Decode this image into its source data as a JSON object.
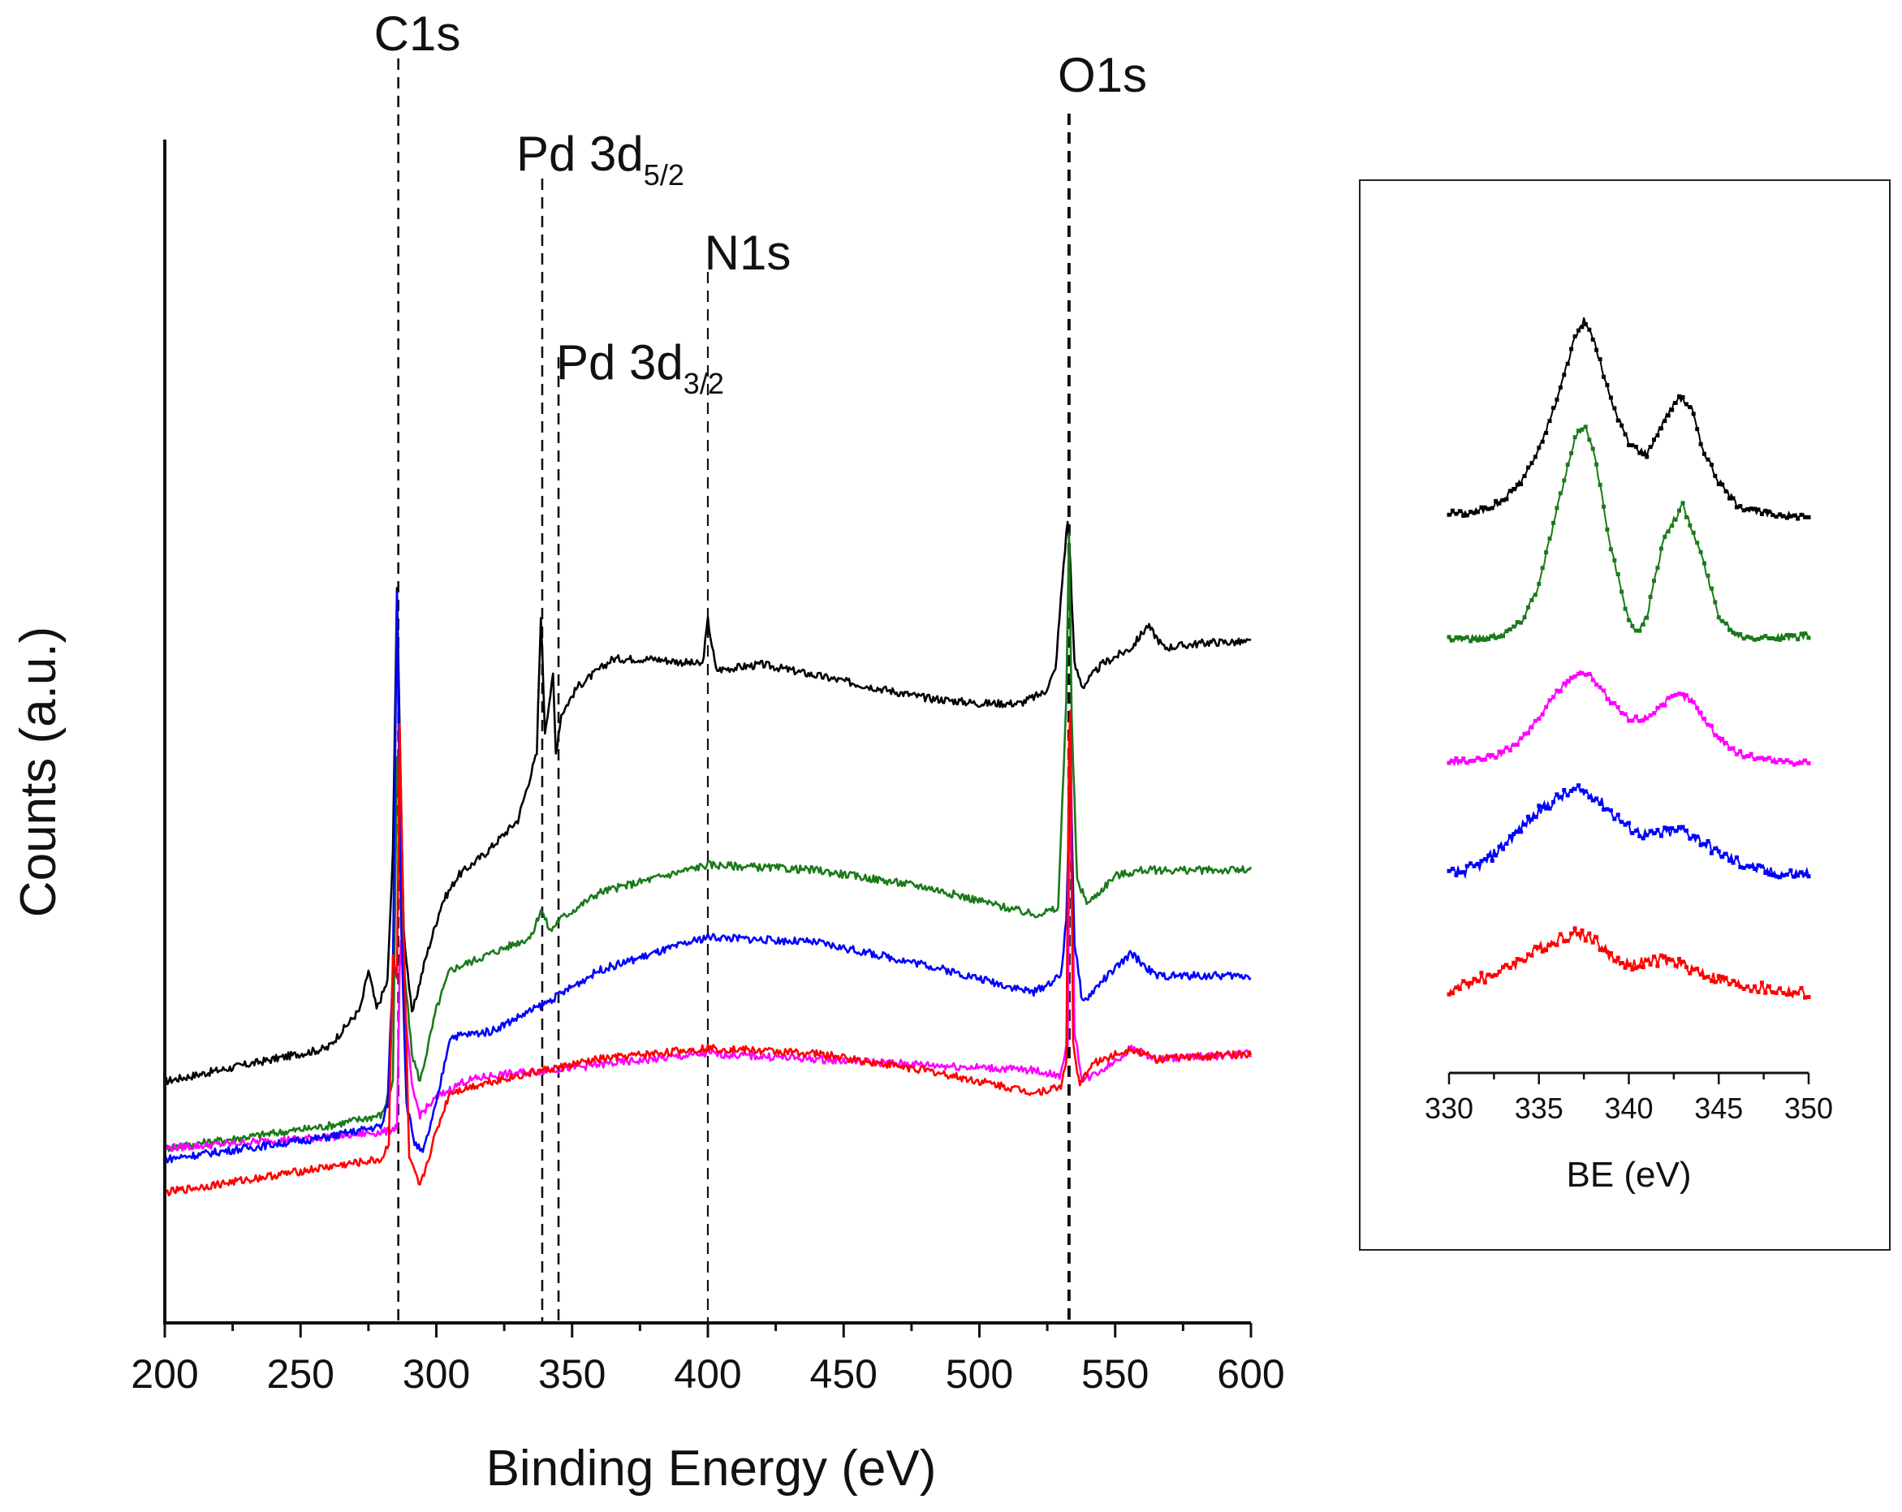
{
  "chart_data": [
    {
      "type": "line",
      "title": "",
      "xlabel": "Binding Energy (eV)",
      "ylabel": "Counts (a.u.)",
      "xlim": [
        200,
        600
      ],
      "xticks": [
        "200",
        "250",
        "300",
        "350",
        "400",
        "450",
        "500",
        "550",
        "600"
      ],
      "y_ticks_shown": false,
      "annotations": [
        {
          "label": "C1s",
          "x": 286
        },
        {
          "label": "Pd 3d",
          "sub": "5/2",
          "x": 339
        },
        {
          "label": "Pd 3d",
          "sub": "3/2",
          "x": 345
        },
        {
          "label": "N1s",
          "x": 400
        },
        {
          "label": "O1s",
          "x": 533
        }
      ],
      "series": [
        {
          "name": "black",
          "color": "#000000",
          "x": [
            200,
            260,
            272,
            275,
            278,
            282,
            284,
            285.5,
            286.5,
            288,
            291,
            296,
            302,
            308,
            318,
            330,
            337,
            338.5,
            340,
            343,
            344,
            346,
            352,
            365,
            380,
            398,
            400,
            403,
            420,
            450,
            480,
            500,
            515,
            524,
            528,
            531,
            532.5,
            533.5,
            535,
            538,
            545,
            556,
            562,
            568,
            585,
            600
          ],
          "y": [
            1.15,
            1.45,
            1.8,
            2.15,
            1.8,
            2.05,
            3.2,
            5.6,
            4.3,
            2.5,
            1.75,
            2.25,
            2.75,
            3.0,
            3.2,
            3.5,
            4.1,
            5.35,
            4.3,
            4.8,
            4.1,
            4.45,
            4.7,
            4.95,
            4.95,
            4.9,
            5.3,
            4.85,
            4.9,
            4.75,
            4.6,
            4.55,
            4.55,
            4.65,
            4.85,
            5.8,
            6.2,
            5.8,
            4.9,
            4.7,
            4.9,
            5.05,
            5.25,
            5.05,
            5.1,
            5.1
          ]
        },
        {
          "name": "green",
          "color": "#1a7a1a",
          "x": [
            200,
            260,
            280,
            284,
            285.5,
            286.5,
            288,
            291,
            294,
            300,
            305,
            320,
            335,
            338.5,
            342,
            345,
            360,
            400,
            440,
            480,
            520,
            529,
            532,
            533,
            534,
            536,
            540,
            550,
            560,
            600
          ],
          "y": [
            0.55,
            0.75,
            0.85,
            1.15,
            4.05,
            3.6,
            2.2,
            1.4,
            1.15,
            1.8,
            2.15,
            2.3,
            2.45,
            2.7,
            2.5,
            2.6,
            2.85,
            3.1,
            3.05,
            2.9,
            2.65,
            2.7,
            4.6,
            6.05,
            4.4,
            2.95,
            2.75,
            3.0,
            3.05,
            3.05
          ]
        },
        {
          "name": "magenta",
          "color": "#ff00ff",
          "x": [
            200,
            260,
            282,
            285.5,
            286.8,
            288,
            291,
            294,
            300,
            310,
            320,
            340,
            360,
            400,
            440,
            480,
            520,
            530,
            532.5,
            533.5,
            535,
            538,
            548,
            556,
            565,
            600
          ],
          "y": [
            0.55,
            0.65,
            0.7,
            0.75,
            2.55,
            1.9,
            1.1,
            0.85,
            1.0,
            1.15,
            1.2,
            1.25,
            1.3,
            1.4,
            1.35,
            1.3,
            1.25,
            1.2,
            1.5,
            4.45,
            1.6,
            1.15,
            1.3,
            1.45,
            1.35,
            1.4
          ]
        },
        {
          "name": "blue",
          "color": "#0000ff",
          "x": [
            200,
            260,
            280,
            282,
            284,
            285.5,
            287,
            289,
            292,
            295,
            300,
            305,
            320,
            340,
            360,
            400,
            440,
            480,
            520,
            530,
            532,
            533.5,
            535,
            538,
            545,
            556,
            565,
            600
          ],
          "y": [
            0.45,
            0.65,
            0.75,
            0.95,
            2.15,
            5.55,
            2.6,
            0.95,
            0.6,
            0.5,
            0.95,
            1.55,
            1.6,
            1.85,
            2.15,
            2.45,
            2.4,
            2.2,
            1.95,
            2.1,
            2.6,
            4.0,
            2.4,
            1.85,
            2.05,
            2.3,
            2.1,
            2.1
          ]
        },
        {
          "name": "red",
          "color": "#ff0000",
          "x": [
            200,
            260,
            280,
            282.5,
            284,
            285.5,
            286.5,
            288,
            290,
            294,
            300,
            305,
            320,
            340,
            360,
            400,
            440,
            480,
            520,
            530,
            532,
            533.3,
            534.5,
            537,
            541,
            556,
            565,
            600
          ],
          "y": [
            0.15,
            0.38,
            0.45,
            0.6,
            2.3,
            2.05,
            4.35,
            2.45,
            0.45,
            0.2,
            0.7,
            1.05,
            1.15,
            1.25,
            1.35,
            1.45,
            1.4,
            1.25,
            1.05,
            1.1,
            1.35,
            5.05,
            1.5,
            1.1,
            1.3,
            1.45,
            1.35,
            1.4
          ]
        }
      ]
    },
    {
      "type": "line",
      "title": "",
      "xlabel": "BE (eV)",
      "ylabel": "",
      "xlim": [
        330,
        350
      ],
      "xticks": [
        "330",
        "335",
        "340",
        "345",
        "350"
      ],
      "y_ticks_shown": false,
      "series": [
        {
          "name": "black",
          "color": "#000000",
          "marker": "diamond",
          "x": [
            330,
            331,
            332,
            333,
            334,
            335,
            336,
            337,
            337.5,
            338,
            339,
            340,
            341,
            342,
            342.8,
            343.5,
            344,
            345,
            346,
            347,
            348,
            349,
            350
          ],
          "y": [
            0.05,
            0.05,
            0.08,
            0.15,
            0.3,
            0.55,
            0.95,
            1.45,
            1.58,
            1.45,
            0.95,
            0.6,
            0.52,
            0.8,
            0.98,
            0.88,
            0.6,
            0.3,
            0.12,
            0.06,
            0.04,
            0.03,
            0.03
          ]
        },
        {
          "name": "green",
          "color": "#1a7a1a",
          "marker": "triangle-down",
          "x": [
            330,
            331,
            332,
            333,
            334,
            335,
            336,
            337,
            337.5,
            338,
            339,
            340,
            340.5,
            341,
            342,
            343,
            344,
            345,
            346,
            347,
            348,
            349,
            350
          ],
          "y": [
            0.02,
            0.02,
            0.03,
            0.06,
            0.15,
            0.45,
            1.05,
            1.6,
            1.72,
            1.55,
            0.75,
            0.15,
            0.08,
            0.2,
            0.85,
            1.08,
            0.7,
            0.2,
            0.05,
            0.03,
            0.03,
            0.03,
            0.04
          ]
        },
        {
          "name": "magenta",
          "color": "#ff00ff",
          "marker": "triangle-up",
          "x": [
            330,
            331,
            332,
            333,
            334,
            335,
            336,
            337,
            337.5,
            338,
            339,
            340,
            341,
            342,
            342.8,
            343.5,
            344,
            345,
            346,
            347,
            348,
            349,
            350
          ],
          "y": [
            0.03,
            0.03,
            0.05,
            0.1,
            0.2,
            0.38,
            0.58,
            0.72,
            0.74,
            0.7,
            0.5,
            0.36,
            0.38,
            0.5,
            0.56,
            0.52,
            0.4,
            0.22,
            0.1,
            0.06,
            0.04,
            0.03,
            0.03
          ]
        },
        {
          "name": "blue",
          "color": "#0000ff",
          "marker": "square",
          "x": [
            330,
            331,
            332,
            333,
            334,
            335,
            336,
            337,
            338,
            339,
            340,
            341,
            342,
            343,
            344,
            345,
            346,
            347,
            348,
            349,
            350
          ],
          "y": [
            0.05,
            0.08,
            0.15,
            0.28,
            0.42,
            0.55,
            0.65,
            0.72,
            0.68,
            0.55,
            0.42,
            0.36,
            0.38,
            0.4,
            0.32,
            0.22,
            0.15,
            0.1,
            0.06,
            0.05,
            0.06
          ]
        },
        {
          "name": "red",
          "color": "#ff0000",
          "marker": "circle",
          "x": [
            330,
            331,
            332,
            333,
            334,
            335,
            336,
            337,
            338,
            339,
            340,
            341,
            342,
            343,
            344,
            345,
            346,
            347,
            348,
            349,
            350
          ],
          "y": [
            0.08,
            0.15,
            0.2,
            0.26,
            0.34,
            0.42,
            0.5,
            0.55,
            0.52,
            0.36,
            0.3,
            0.32,
            0.33,
            0.3,
            0.24,
            0.18,
            0.14,
            0.12,
            0.1,
            0.08,
            0.07
          ]
        }
      ]
    }
  ]
}
